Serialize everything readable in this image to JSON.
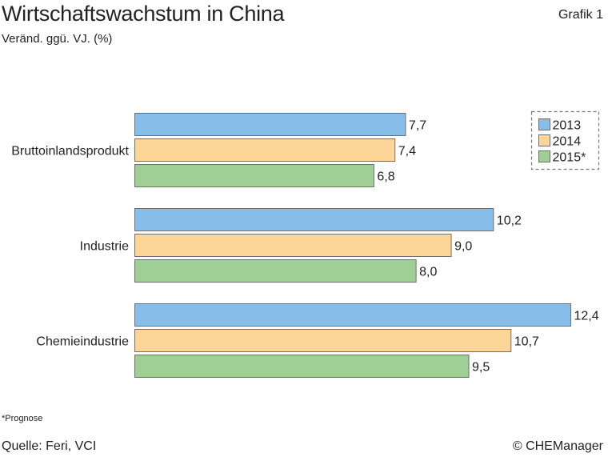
{
  "header": {
    "title": "Wirtschaftswachstum in China",
    "subtitle": "Veränd. ggü. VJ. (%)",
    "grafik_label": "Grafik 1"
  },
  "footer": {
    "footnote": "*Prognose",
    "source": "Quelle: Feri, VCI",
    "copyright": "© CHEManager"
  },
  "colors": {
    "2013": "#87bde9",
    "2014": "#fdd596",
    "2015": "#9fcf94",
    "bar_stroke": "#6f6f6f",
    "legend_border": "#777777"
  },
  "chart_data": {
    "type": "bar",
    "orientation": "horizontal",
    "title": "Wirtschaftswachstum in China",
    "subtitle": "Veränd. ggü. VJ. (%)",
    "categories": [
      "Bruttoinlandsprodukt",
      "Industrie",
      "Chemieindustrie"
    ],
    "series": [
      {
        "name": "2013",
        "values": [
          7.7,
          10.2,
          12.4
        ],
        "value_labels": [
          "7,7",
          "10,2",
          "12,4"
        ]
      },
      {
        "name": "2014",
        "values": [
          7.4,
          9.0,
          10.7
        ],
        "value_labels": [
          "7,4",
          "9,0",
          "10,7"
        ]
      },
      {
        "name": "2015*",
        "values": [
          6.8,
          8.0,
          9.5
        ],
        "value_labels": [
          "6,8",
          "8,0",
          "9,5"
        ]
      }
    ],
    "xlim": [
      0,
      12.4
    ],
    "grid": false,
    "legend": {
      "position": "top-right",
      "entries": [
        "2013",
        "2014",
        "2015*"
      ]
    }
  }
}
